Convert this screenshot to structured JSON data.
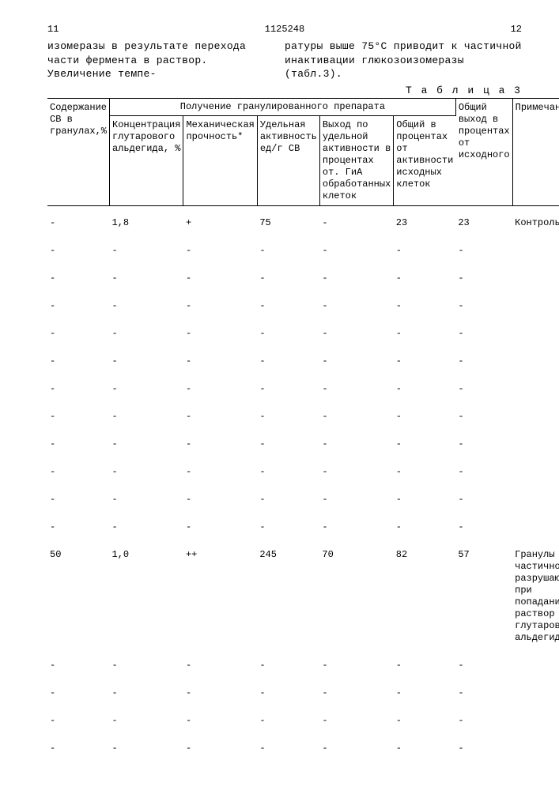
{
  "header": {
    "page_left": "11",
    "doc_number": "1125248",
    "page_right": "12"
  },
  "intro": {
    "left": "изомеразы в результате перехода части фермента в раствор. Увеличение темпе-",
    "right": "ратуры выше 75°С приводит к частичной инактивации глюкозоизомеразы (табл.3)."
  },
  "table_label": "Т а б л и ц а  3",
  "columns": {
    "group_label": "Получение гранулированного препарата",
    "c1": "Содержание СВ в гранулах,%",
    "c2": "Концентрация глутарового альдегида, %",
    "c3": "Механическая прочность*",
    "c4": "Удельная активность ед/г СВ",
    "c5": "Выход по удельной активности в процентах от. ГиА обработанных клеток",
    "c6": "Общий в процентах от активности исходных клеток",
    "c7": "Общий выход в процентах от исходного",
    "c8": "Примечания"
  },
  "rows": [
    {
      "c1": "-",
      "c2": "1,8",
      "c3": "+",
      "c4": "75",
      "c5": "-",
      "c6": "23",
      "c7": "23",
      "c8": "Контроль"
    },
    {
      "c1": "-",
      "c2": "-",
      "c3": "-",
      "c4": "-",
      "c5": "-",
      "c6": "-",
      "c7": "-",
      "c8": ""
    },
    {
      "c1": "-",
      "c2": "-",
      "c3": "-",
      "c4": "-",
      "c5": "-",
      "c6": "-",
      "c7": "-",
      "c8": ""
    },
    {
      "c1": "-",
      "c2": "-",
      "c3": "-",
      "c4": "-",
      "c5": "-",
      "c6": "-",
      "c7": "-",
      "c8": ""
    },
    {
      "c1": "-",
      "c2": "-",
      "c3": "-",
      "c4": "-",
      "c5": "-",
      "c6": "-",
      "c7": "-",
      "c8": ""
    },
    {
      "c1": "-",
      "c2": "-",
      "c3": "-",
      "c4": "-",
      "c5": "-",
      "c6": "-",
      "c7": "-",
      "c8": ""
    },
    {
      "c1": "-",
      "c2": "-",
      "c3": "-",
      "c4": "-",
      "c5": "-",
      "c6": "-",
      "c7": "-",
      "c8": ""
    },
    {
      "c1": "-",
      "c2": "-",
      "c3": "-",
      "c4": "-",
      "c5": "-",
      "c6": "-",
      "c7": "-",
      "c8": ""
    },
    {
      "c1": "-",
      "c2": "-",
      "c3": "-",
      "c4": "-",
      "c5": "-",
      "c6": "-",
      "c7": "-",
      "c8": ""
    },
    {
      "c1": "-",
      "c2": "-",
      "c3": "-",
      "c4": "-",
      "c5": "-",
      "c6": "-",
      "c7": "-",
      "c8": ""
    },
    {
      "c1": "-",
      "c2": "-",
      "c3": "-",
      "c4": "-",
      "c5": "-",
      "c6": "-",
      "c7": "-",
      "c8": ""
    },
    {
      "c1": "-",
      "c2": "-",
      "c3": "-",
      "c4": "-",
      "c5": "-",
      "c6": "-",
      "c7": "-",
      "c8": ""
    },
    {
      "c1": "50",
      "c2": "1,0",
      "c3": "++",
      "c4": "245",
      "c5": "70",
      "c6": "82",
      "c7": "57",
      "c8": "Гранулы частично разрушаются при попадании в раствор глутарового альдегида"
    },
    {
      "c1": "-",
      "c2": "-",
      "c3": "-",
      "c4": "-",
      "c5": "-",
      "c6": "-",
      "c7": "-",
      "c8": ""
    },
    {
      "c1": "-",
      "c2": "-",
      "c3": "-",
      "c4": "-",
      "c5": "-",
      "c6": "-",
      "c7": "-",
      "c8": ""
    },
    {
      "c1": "-",
      "c2": "-",
      "c3": "-",
      "c4": "-",
      "c5": "-",
      "c6": "-",
      "c7": "-",
      "c8": ""
    },
    {
      "c1": "-",
      "c2": "-",
      "c3": "-",
      "c4": "-",
      "c5": "-",
      "c6": "-",
      "c7": "-",
      "c8": ""
    }
  ]
}
